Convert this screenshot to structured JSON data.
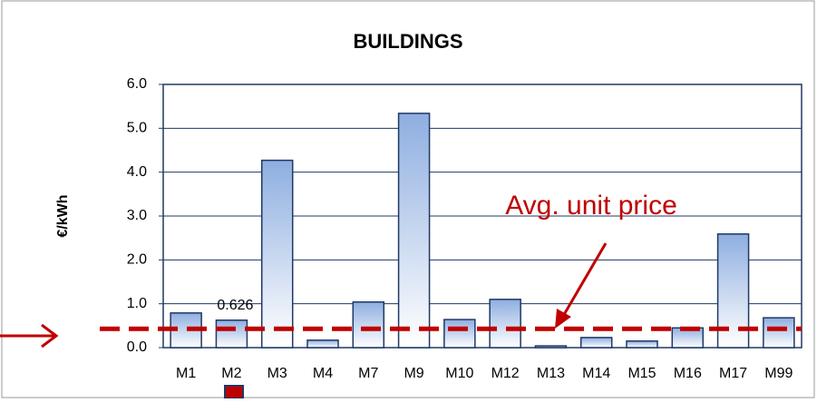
{
  "chart_data": {
    "type": "bar",
    "title": "BUILDINGS",
    "y_label": "€/kWh",
    "categories": [
      "M1",
      "M2",
      "M3",
      "M4",
      "M7",
      "M9",
      "M10",
      "M12",
      "M13",
      "M14",
      "M15",
      "M16",
      "M17",
      "M99"
    ],
    "values": [
      0.79,
      0.626,
      4.27,
      0.17,
      1.04,
      5.34,
      0.64,
      1.1,
      0.04,
      0.23,
      0.15,
      0.45,
      2.59,
      0.68
    ],
    "value_labels": [
      null,
      "0.626",
      null,
      null,
      null,
      null,
      null,
      null,
      null,
      null,
      null,
      null,
      null,
      null
    ],
    "color": "#8eaee0",
    "ylim": [
      0,
      6
    ],
    "yticks": [
      {
        "value": 0,
        "label": "0.0"
      },
      {
        "value": 1,
        "label": "1.0"
      },
      {
        "value": 2,
        "label": "2.0"
      },
      {
        "value": 3,
        "label": "3.0"
      },
      {
        "value": 4,
        "label": "4.0"
      },
      {
        "value": 5,
        "label": "5.0"
      },
      {
        "value": 6,
        "label": "6.0"
      }
    ],
    "grid": true,
    "reference_line": {
      "label": "Avg. unit price",
      "value": 0.43,
      "color": "#c00000"
    }
  }
}
